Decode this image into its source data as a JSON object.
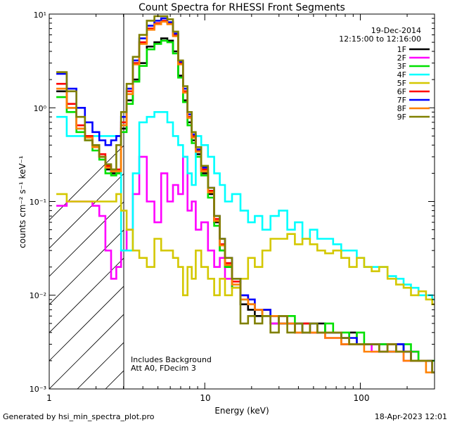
{
  "chart_data": {
    "type": "line",
    "title": "Count Spectra for RHESSI Front Segments",
    "xlabel": "Energy (keV)",
    "ylabel": "counts cm⁻² s⁻¹ keV⁻¹",
    "xscale": "log",
    "yscale": "log",
    "xlim": [
      1,
      300
    ],
    "ylim": [
      0.001,
      10
    ],
    "xtick_labels": [
      "1",
      "10",
      "100"
    ],
    "ytick_labels": [
      "10⁻³",
      "10⁻²",
      "10⁻¹",
      "10⁰",
      "10¹"
    ],
    "date": "19-Dec-2014",
    "time_range": "12:15:00 to 12:16:00",
    "note_lines": [
      "Includes Background",
      "Att A0, FDecim 3"
    ],
    "excluded_region_keV": [
      1,
      3
    ],
    "footer_left": "Generated by hsi_min_spectra_plot.pro",
    "footer_right": "18-Apr-2023 12:01",
    "legend_position": "top-right",
    "energy_keV": [
      1.2,
      1.4,
      1.6,
      1.8,
      2.0,
      2.2,
      2.4,
      2.6,
      2.8,
      3.0,
      3.3,
      3.6,
      4.0,
      4.5,
      5.0,
      5.5,
      6.0,
      6.5,
      7.0,
      7.5,
      8.0,
      8.5,
      9.0,
      10,
      11,
      12,
      13,
      14,
      16,
      18,
      20,
      22,
      25,
      28,
      32,
      36,
      40,
      45,
      50,
      56,
      63,
      71,
      80,
      90,
      100,
      112,
      125,
      140,
      160,
      180,
      200,
      224,
      250,
      280,
      300
    ],
    "series": [
      {
        "name": "1F",
        "color": "#000000",
        "values": [
          1.5,
          1.0,
          0.6,
          0.5,
          0.4,
          0.3,
          0.22,
          0.2,
          0.2,
          0.6,
          1.2,
          2.0,
          3.0,
          4.5,
          5.0,
          5.5,
          5.2,
          4.0,
          2.2,
          1.2,
          0.7,
          0.45,
          0.32,
          0.2,
          0.12,
          0.06,
          0.03,
          0.02,
          0.012,
          0.008,
          0.007,
          0.006,
          0.007,
          0.005,
          0.006,
          0.005,
          0.004,
          0.005,
          0.004,
          0.005,
          0.004,
          0.004,
          0.003,
          0.004,
          0.003,
          0.003,
          0.003,
          0.003,
          0.0025,
          0.003,
          0.0025,
          0.0025,
          0.002,
          0.002,
          0.0015
        ]
      },
      {
        "name": "2F",
        "color": "#ff00ff",
        "values": [
          0.09,
          0.1,
          0.1,
          0.1,
          0.09,
          0.07,
          0.03,
          0.015,
          0.02,
          0.03,
          0.05,
          0.12,
          0.3,
          0.1,
          0.06,
          0.2,
          0.1,
          0.15,
          0.12,
          0.3,
          0.08,
          0.1,
          0.05,
          0.06,
          0.03,
          0.02,
          0.025,
          0.015,
          0.012,
          0.01,
          0.008,
          0.007,
          0.006,
          0.005,
          0.005,
          0.005,
          0.004,
          0.004,
          0.004,
          0.004,
          0.0035,
          0.0035,
          0.003,
          0.003,
          0.003,
          0.003,
          0.0025,
          0.0025,
          0.003,
          0.0025,
          0.002,
          0.0025,
          0.002,
          0.002,
          0.0015
        ]
      },
      {
        "name": "3F",
        "color": "#00e000",
        "values": [
          1.3,
          0.9,
          0.55,
          0.45,
          0.35,
          0.28,
          0.2,
          0.19,
          0.2,
          0.55,
          1.1,
          1.9,
          2.8,
          4.2,
          4.8,
          5.2,
          5.0,
          3.8,
          2.1,
          1.15,
          0.65,
          0.42,
          0.3,
          0.19,
          0.11,
          0.055,
          0.03,
          0.02,
          0.012,
          0.009,
          0.008,
          0.007,
          0.006,
          0.006,
          0.005,
          0.006,
          0.005,
          0.004,
          0.005,
          0.004,
          0.005,
          0.004,
          0.004,
          0.003,
          0.004,
          0.003,
          0.003,
          0.003,
          0.003,
          0.0025,
          0.003,
          0.0025,
          0.002,
          0.002,
          0.002
        ]
      },
      {
        "name": "4F",
        "color": "#00ffff",
        "values": [
          0.8,
          0.5,
          0.5,
          0.5,
          0.5,
          0.5,
          0.5,
          0.5,
          0.5,
          0.03,
          0.03,
          0.2,
          0.7,
          0.8,
          0.9,
          0.9,
          0.7,
          0.5,
          0.4,
          0.3,
          0.2,
          0.15,
          0.5,
          0.4,
          0.3,
          0.2,
          0.15,
          0.1,
          0.12,
          0.08,
          0.06,
          0.07,
          0.05,
          0.07,
          0.08,
          0.05,
          0.06,
          0.04,
          0.05,
          0.04,
          0.04,
          0.035,
          0.03,
          0.03,
          0.025,
          0.02,
          0.02,
          0.02,
          0.016,
          0.015,
          0.013,
          0.012,
          0.01,
          0.01,
          0.009
        ]
      },
      {
        "name": "5F",
        "color": "#d4c800",
        "values": [
          0.12,
          0.1,
          0.1,
          0.1,
          0.1,
          0.1,
          0.1,
          0.1,
          0.12,
          0.08,
          0.05,
          0.03,
          0.025,
          0.02,
          0.04,
          0.03,
          0.03,
          0.025,
          0.02,
          0.01,
          0.02,
          0.015,
          0.03,
          0.02,
          0.015,
          0.01,
          0.015,
          0.01,
          0.012,
          0.015,
          0.025,
          0.02,
          0.03,
          0.04,
          0.04,
          0.045,
          0.035,
          0.04,
          0.035,
          0.03,
          0.028,
          0.03,
          0.025,
          0.02,
          0.025,
          0.02,
          0.018,
          0.02,
          0.015,
          0.013,
          0.012,
          0.01,
          0.011,
          0.009,
          0.008
        ]
      },
      {
        "name": "6F",
        "color": "#ff0000",
        "values": [
          1.8,
          1.1,
          0.65,
          0.5,
          0.4,
          0.32,
          0.24,
          0.22,
          0.22,
          0.7,
          1.5,
          3.0,
          5.0,
          7.0,
          8.0,
          8.5,
          8.0,
          6.0,
          3.0,
          1.5,
          0.8,
          0.5,
          0.35,
          0.22,
          0.13,
          0.065,
          0.035,
          0.022,
          0.014,
          0.01,
          0.008,
          0.007,
          0.007,
          0.006,
          0.006,
          0.005,
          0.005,
          0.005,
          0.004,
          0.004,
          0.004,
          0.004,
          0.0035,
          0.003,
          0.003,
          0.003,
          0.003,
          0.0025,
          0.003,
          0.0025,
          0.0025,
          0.002,
          0.002,
          0.002,
          0.0015
        ]
      },
      {
        "name": "7F",
        "color": "#0000ff",
        "values": [
          2.3,
          1.6,
          1.0,
          0.7,
          0.55,
          0.45,
          0.4,
          0.45,
          0.5,
          0.8,
          1.6,
          3.2,
          5.5,
          7.5,
          8.5,
          9.0,
          8.2,
          6.2,
          3.1,
          1.6,
          0.85,
          0.52,
          0.36,
          0.23,
          0.14,
          0.07,
          0.04,
          0.025,
          0.015,
          0.01,
          0.009,
          0.007,
          0.007,
          0.006,
          0.005,
          0.005,
          0.005,
          0.004,
          0.005,
          0.004,
          0.004,
          0.004,
          0.0035,
          0.0035,
          0.003,
          0.003,
          0.003,
          0.0025,
          0.0025,
          0.003,
          0.0025,
          0.002,
          0.002,
          0.002,
          0.0015
        ]
      },
      {
        "name": "8F",
        "color": "#ff8000",
        "values": [
          1.6,
          1.0,
          0.6,
          0.48,
          0.38,
          0.3,
          0.23,
          0.21,
          0.21,
          0.65,
          1.4,
          2.9,
          4.8,
          6.8,
          7.8,
          8.3,
          7.8,
          5.8,
          2.9,
          1.45,
          0.78,
          0.48,
          0.34,
          0.21,
          0.125,
          0.062,
          0.034,
          0.021,
          0.013,
          0.009,
          0.008,
          0.007,
          0.006,
          0.006,
          0.005,
          0.005,
          0.004,
          0.004,
          0.004,
          0.004,
          0.0035,
          0.0035,
          0.003,
          0.003,
          0.003,
          0.0025,
          0.0025,
          0.0025,
          0.0025,
          0.0025,
          0.002,
          0.002,
          0.002,
          0.0015,
          0.0015
        ]
      },
      {
        "name": "9F",
        "color": "#808000",
        "values": [
          2.4,
          1.5,
          0.8,
          0.45,
          0.4,
          0.3,
          0.25,
          0.22,
          0.4,
          0.9,
          1.8,
          3.5,
          6.0,
          8.5,
          9.5,
          9.5,
          8.8,
          6.5,
          3.2,
          1.7,
          0.9,
          0.55,
          0.38,
          0.24,
          0.14,
          0.07,
          0.04,
          0.025,
          0.015,
          0.005,
          0.006,
          0.005,
          0.006,
          0.004,
          0.006,
          0.004,
          0.005,
          0.004,
          0.005,
          0.004,
          0.004,
          0.004,
          0.0035,
          0.003,
          0.003,
          0.003,
          0.003,
          0.0025,
          0.003,
          0.0025,
          0.0025,
          0.002,
          0.002,
          0.002,
          0.0015
        ]
      }
    ]
  }
}
